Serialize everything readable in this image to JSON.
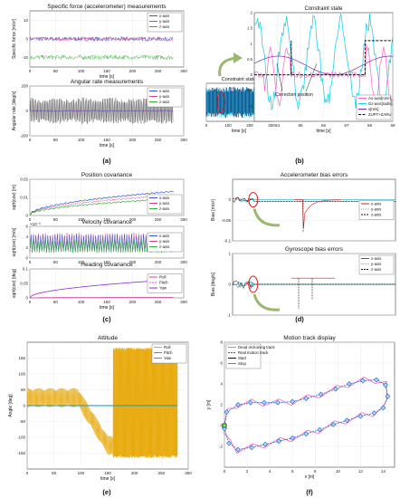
{
  "panel_labels": [
    "(a)",
    "(b)",
    "(c)",
    "(d)",
    "(e)",
    "(f)"
  ],
  "colors": {
    "x": "#2f55d8",
    "y": "#e03a8a",
    "z": "#2bb32b",
    "gray": "#555555",
    "roll": "#e8a90a",
    "pitch": "#21a0d6",
    "yaw": "#8a2be2",
    "red": "#d21f1f",
    "blue": "#1f5fc4",
    "cyan": "#1fd0e8",
    "magenta": "#ff5fc8"
  },
  "chart_data": [
    {
      "id": "a1",
      "type": "line",
      "title": "Specific force (accelerometer) measurements",
      "xlabel": "time [s]",
      "ylabel": "Specific force [m/s²]",
      "xlim": [
        0,
        300
      ],
      "ylim": [
        -15,
        15
      ],
      "xticks": [
        0,
        50,
        100,
        150,
        200,
        250,
        300
      ],
      "yticks": [
        -10,
        0,
        10
      ],
      "legend": "top-right",
      "series": [
        {
          "name": "x-axis",
          "mean": 0,
          "amp": 1.2
        },
        {
          "name": "y-axis",
          "mean": 0,
          "amp": 1.0
        },
        {
          "name": "z-axis",
          "mean": -9.8,
          "amp": 1.2
        }
      ]
    },
    {
      "id": "a2",
      "type": "line",
      "title": "Angular rate measurements",
      "xlabel": "time [s]",
      "ylabel": "Angular rate [deg/s]",
      "xlim": [
        0,
        300
      ],
      "ylim": [
        -200,
        200
      ],
      "xticks": [
        0,
        50,
        100,
        150,
        200,
        250,
        300
      ],
      "yticks": [
        -200,
        0,
        200
      ],
      "legend": "top-right",
      "series": [
        {
          "name": "x-axis",
          "mean": 0,
          "amp": 10
        },
        {
          "name": "y-axis",
          "mean": 0,
          "amp": 10
        },
        {
          "name": "z-axis",
          "mean": 0,
          "amp": 120
        }
      ]
    },
    {
      "id": "b_small",
      "type": "line",
      "title": "Constraint state",
      "xlim": [
        0,
        300
      ],
      "ylim": [
        -1,
        1
      ],
      "xticks": [
        0,
        100,
        200,
        300
      ],
      "xlabel": "time [s]"
    },
    {
      "id": "b_main",
      "type": "line",
      "title": "Constraint state",
      "xlim": [
        63,
        69
      ],
      "ylim": [
        -1.5,
        2
      ],
      "xticks": [
        64,
        65,
        66,
        67,
        68,
        69
      ],
      "xlabel": "time [s]",
      "legend": "bottom-right",
      "series": [
        {
          "name": "Ax-axis[m/s²]"
        },
        {
          "name": "Gz-axis[rad/s]"
        },
        {
          "name": "v[m/s]"
        },
        {
          "name": "ZUPT+ZARU"
        }
      ],
      "annotation": "Correction position"
    },
    {
      "id": "c1",
      "type": "line",
      "title": "Position covariance",
      "xlabel": "",
      "ylabel": "sqrt(cov) [m]",
      "xlim": [
        0,
        300
      ],
      "ylim": [
        0,
        0.02
      ],
      "xticks": [
        0,
        50,
        100,
        150,
        200,
        250,
        300
      ],
      "yticks": [
        0,
        0.01,
        0.02
      ],
      "legend": "bottom-right",
      "series": [
        {
          "name": "x-axis",
          "end": 0.013
        },
        {
          "name": "y-axis",
          "end": 0.011
        },
        {
          "name": "z-axis",
          "end": 0.009
        }
      ]
    },
    {
      "id": "c2",
      "type": "line",
      "title": "Velocity covariance",
      "ylabel": "sqrt(cov) [m/s]",
      "exponent": "×10⁻³",
      "xlim": [
        0,
        300
      ],
      "ylim": [
        0,
        6
      ],
      "xticks": [
        0,
        50,
        100,
        150,
        200,
        250,
        300
      ],
      "yticks": [
        0,
        2,
        4,
        6
      ],
      "legend": "right",
      "series": [
        {
          "name": "x-axis"
        },
        {
          "name": "y-axis"
        },
        {
          "name": "z-axis"
        }
      ]
    },
    {
      "id": "c3",
      "type": "line",
      "title": "Heading covariance",
      "xlabel": "time [s]",
      "ylabel": "sqrt(cov) [deg]",
      "xlim": [
        0,
        300
      ],
      "ylim": [
        0,
        0.1
      ],
      "xticks": [
        0,
        50,
        100,
        150,
        200,
        250,
        300
      ],
      "yticks": [
        0,
        0.05,
        0.1
      ],
      "legend": "right",
      "series": [
        {
          "name": "Roll",
          "end": 0.002
        },
        {
          "name": "Pitch",
          "end": 0.002
        },
        {
          "name": "Yaw",
          "end": 0.063
        }
      ]
    },
    {
      "id": "d1",
      "type": "line",
      "title": "Accelerometer bias errors",
      "ylabel": "Bias [m/s²]",
      "xlim": [
        0,
        300
      ],
      "ylim": [
        -0.1,
        0.05
      ],
      "yticks": [
        0,
        -0.05,
        -0.1
      ],
      "legend": "right",
      "series": [
        {
          "name": "x-axis"
        },
        {
          "name": "y-axis"
        },
        {
          "name": "z-axis"
        }
      ]
    },
    {
      "id": "d2",
      "type": "line",
      "title": "Gyroscope bias errors",
      "ylabel": "Bias [deg/s]",
      "xlim": [
        0,
        300
      ],
      "ylim": [
        -1,
        1
      ],
      "yticks": [
        1,
        0,
        -1
      ],
      "legend": "right",
      "series": [
        {
          "name": "x-axis"
        },
        {
          "name": "y-axis"
        },
        {
          "name": "z-axis"
        }
      ]
    },
    {
      "id": "e",
      "type": "line",
      "title": "Attitude",
      "xlabel": "time [s]",
      "ylabel": "Angle [deg]",
      "xlim": [
        0,
        300
      ],
      "ylim": [
        -200,
        200
      ],
      "xticks": [
        0,
        50,
        100,
        150,
        200,
        250,
        300
      ],
      "yticks": [
        -150,
        -100,
        -50,
        0,
        50,
        100,
        150
      ],
      "legend": "top-right",
      "series": [
        {
          "name": "Roll"
        },
        {
          "name": "Pitch"
        },
        {
          "name": "Yaw"
        }
      ]
    },
    {
      "id": "f",
      "type": "line",
      "title": "Motion track display",
      "xlabel": "x [m]",
      "ylabel": "y [m]",
      "xlim": [
        0,
        15
      ],
      "ylim": [
        -4,
        8
      ],
      "xticks": [
        0,
        2,
        4,
        6,
        8,
        10,
        12,
        14
      ],
      "yticks": [
        -2,
        0,
        2,
        4,
        6,
        8
      ],
      "legend": "top-left",
      "series": [
        {
          "name": "Dead reckoning track"
        },
        {
          "name": "Real motion track"
        },
        {
          "name": "Start"
        },
        {
          "name": "Stop"
        }
      ],
      "real_track": [
        [
          0,
          0
        ],
        [
          0.2,
          1.3
        ],
        [
          1.2,
          2.0
        ],
        [
          2.3,
          2.2
        ],
        [
          3.5,
          2.2
        ],
        [
          4.7,
          2.2
        ],
        [
          6.0,
          2.3
        ],
        [
          7.2,
          2.6
        ],
        [
          8.5,
          3.0
        ],
        [
          9.8,
          3.5
        ],
        [
          11.0,
          4.0
        ],
        [
          12.2,
          4.3
        ],
        [
          13.4,
          4.4
        ],
        [
          14.2,
          3.9
        ],
        [
          14.4,
          2.8
        ],
        [
          14.0,
          1.7
        ],
        [
          13.2,
          1.2
        ],
        [
          12.0,
          0.9
        ],
        [
          10.8,
          0.5
        ],
        [
          9.6,
          0.1
        ],
        [
          8.4,
          -0.4
        ],
        [
          7.2,
          -0.8
        ],
        [
          6.0,
          -1.2
        ],
        [
          4.8,
          -1.5
        ],
        [
          3.6,
          -1.8
        ],
        [
          2.4,
          -2.1
        ],
        [
          1.2,
          -2.3
        ],
        [
          0.4,
          -1.7
        ],
        [
          0.0,
          -0.3
        ]
      ]
    }
  ]
}
